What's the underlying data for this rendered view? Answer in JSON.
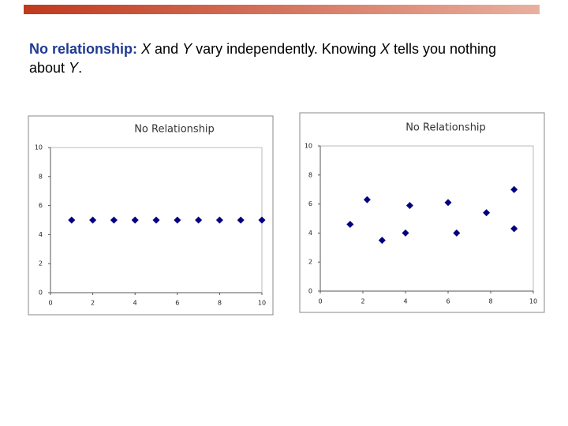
{
  "slide_text": {
    "runs": [
      {
        "text": "No relationship:",
        "bold": true,
        "color": "#1f3a93"
      },
      {
        "text": " "
      },
      {
        "text": "X",
        "italic": true
      },
      {
        "text": " and "
      },
      {
        "text": "Y",
        "italic": true
      },
      {
        "text": " vary independently. Knowing "
      },
      {
        "text": "X",
        "italic": true
      },
      {
        "text": " tells you nothing about "
      },
      {
        "text": "Y",
        "italic": true
      },
      {
        "text": "."
      }
    ]
  },
  "chart_data": [
    {
      "type": "scatter",
      "title": "No Relationship",
      "color": "#000080",
      "x": [
        1,
        2,
        3,
        4,
        5,
        6,
        7,
        8,
        9,
        10
      ],
      "values": [
        5,
        5,
        5,
        5,
        5,
        5,
        5,
        5,
        5,
        5
      ],
      "xlim": [
        0,
        10
      ],
      "ylim": [
        0,
        10
      ],
      "xticks": [
        0,
        2,
        4,
        6,
        8,
        10
      ],
      "yticks": [
        0,
        2,
        4,
        6,
        8,
        10
      ]
    },
    {
      "type": "scatter",
      "title": "No Relationship",
      "color": "#000080",
      "x": [
        1.4,
        2.2,
        2.9,
        4.0,
        4.2,
        6.0,
        6.4,
        7.8,
        9.1,
        9.1
      ],
      "values": [
        4.6,
        6.3,
        3.5,
        4.0,
        5.9,
        6.1,
        4.0,
        5.4,
        7.0,
        4.3
      ],
      "xlim": [
        0,
        10
      ],
      "ylim": [
        0,
        10
      ],
      "xticks": [
        0,
        2,
        4,
        6,
        8,
        10
      ],
      "yticks": [
        0,
        2,
        4,
        6,
        8,
        10
      ]
    }
  ]
}
